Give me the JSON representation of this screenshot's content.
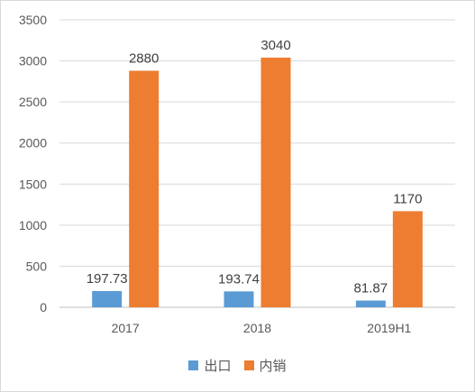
{
  "chart_data": {
    "type": "bar",
    "categories": [
      "2017",
      "2018",
      "2019H1"
    ],
    "series": [
      {
        "name": "出口",
        "values": [
          197.73,
          193.74,
          81.87
        ],
        "color": "#5b9bd5"
      },
      {
        "name": "内销",
        "values": [
          2880,
          3040,
          1170
        ],
        "color": "#ed7d31"
      }
    ],
    "data_labels": [
      [
        "197.73",
        "193.74",
        "81.87"
      ],
      [
        "2880",
        "3040",
        "1170"
      ]
    ],
    "ylim": [
      0,
      3500
    ],
    "yticks": [
      0,
      500,
      1000,
      1500,
      2000,
      2500,
      3000,
      3500
    ],
    "grid": true,
    "legend_position": "bottom",
    "title": "",
    "xlabel": "",
    "ylabel": ""
  }
}
